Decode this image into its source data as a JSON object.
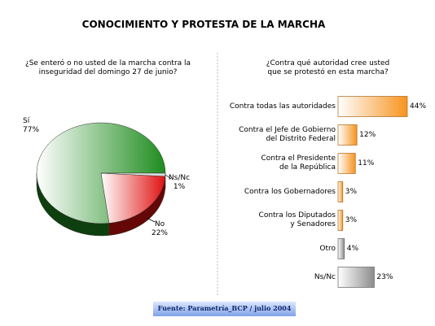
{
  "title": "CONOCIMIENTO Y PROTESTA DE LA MARCHA",
  "source": "Fuente: Parametría_BCP / julio 2004",
  "chart_data": [
    {
      "type": "pie",
      "title": "¿Se enteró o no usted de la marcha contra la\ninseguridad del domingo 27 de junio?",
      "categories": [
        "Sí",
        "No",
        "Ns/Nc"
      ],
      "values": [
        77,
        22,
        1
      ],
      "value_labels": [
        "77%",
        "22%",
        "1%"
      ],
      "colors": [
        "#1e8c1e",
        "#e01010",
        "#d8d8d8"
      ]
    },
    {
      "type": "bar",
      "title": "¿Contra qué autoridad cree usted\nque se protestó en esta marcha?",
      "categories": [
        "Contra todas las autoridades",
        "Contra el Jefe de Gobierno\ndel Distrito Federal",
        "Contra el Presidente\nde la República",
        "Contra los Gobernadores",
        "Contra los Diputados\ny Senadores",
        "Otro",
        "Ns/Nc"
      ],
      "values": [
        44,
        12,
        11,
        3,
        3,
        4,
        23
      ],
      "value_labels": [
        "44%",
        "12%",
        "11%",
        "3%",
        "3%",
        "4%",
        "23%"
      ],
      "colors": [
        "#f7931e",
        "#f7931e",
        "#f7931e",
        "#f7931e",
        "#f7931e",
        "#8c8c8c",
        "#8c8c8c"
      ]
    }
  ]
}
